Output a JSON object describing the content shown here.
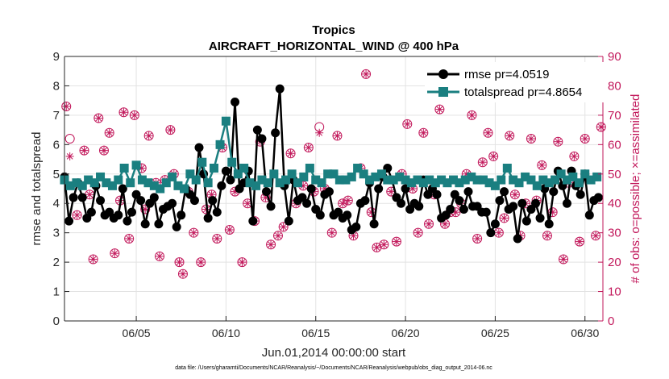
{
  "chart_data": {
    "type": "line",
    "title": "Tropics",
    "subtitle": "AIRCRAFT_HORIZONTAL_WIND @ 400 hPa",
    "xlabel": "Jun.01,2014 00:00:00 start",
    "ylabel": "rmse and totalspread",
    "ylabel_right": "# of obs: o=possible; ×=assimilated",
    "footnote": "data file: /Users/gharamti/Documents/NCAR/Reanalysis/~/Documents/NCAR/Reanalysis/webpub/obs_diag_output_2014-06.nc",
    "xlim": [
      1,
      31
    ],
    "ylim": [
      0,
      9
    ],
    "ylim_right": [
      0,
      90
    ],
    "x_ticks": [
      5,
      10,
      15,
      20,
      25,
      30
    ],
    "x_tick_labels": [
      "06/05",
      "06/10",
      "06/15",
      "06/20",
      "06/25",
      "06/30"
    ],
    "y_ticks": [
      0,
      1,
      2,
      3,
      4,
      5,
      6,
      7,
      8,
      9
    ],
    "y_ticks_right": [
      0,
      10,
      20,
      30,
      40,
      50,
      60,
      70,
      80,
      90
    ],
    "grid": "on",
    "legend_position": "top-right",
    "series": [
      {
        "name": "rmse pr=4.0519",
        "color": "#000000",
        "marker": "circle",
        "x": [
          1.0,
          1.25,
          1.5,
          1.75,
          2.0,
          2.25,
          2.5,
          2.75,
          3.0,
          3.25,
          3.5,
          3.75,
          4.0,
          4.25,
          4.5,
          4.75,
          5.0,
          5.25,
          5.5,
          5.75,
          6.0,
          6.25,
          6.5,
          6.75,
          7.0,
          7.25,
          7.5,
          7.75,
          8.0,
          8.25,
          8.5,
          8.75,
          9.0,
          9.25,
          9.5,
          9.75,
          10.0,
          10.25,
          10.5,
          10.75,
          11.0,
          11.25,
          11.5,
          11.75,
          12.0,
          12.25,
          12.5,
          12.75,
          13.0,
          13.25,
          13.5,
          13.75,
          14.0,
          14.25,
          14.5,
          14.75,
          15.0,
          15.25,
          15.5,
          15.75,
          16.0,
          16.25,
          16.5,
          16.75,
          17.0,
          17.25,
          17.5,
          17.75,
          18.0,
          18.25,
          18.5,
          18.75,
          19.0,
          19.25,
          19.5,
          19.75,
          20.0,
          20.25,
          20.5,
          20.75,
          21.0,
          21.25,
          21.5,
          21.75,
          22.0,
          22.25,
          22.5,
          22.75,
          23.0,
          23.25,
          23.5,
          23.75,
          24.0,
          24.25,
          24.5,
          24.75,
          25.0,
          25.25,
          25.5,
          25.75,
          26.0,
          26.25,
          26.5,
          26.75,
          27.0,
          27.25,
          27.5,
          27.75,
          28.0,
          28.25,
          28.5,
          28.75,
          29.0,
          29.25,
          29.5,
          29.75,
          30.0,
          30.25,
          30.5,
          30.75
        ],
        "values": [
          4.9,
          3.4,
          4.2,
          4.7,
          4.2,
          3.5,
          3.7,
          4.6,
          4.1,
          3.6,
          3.7,
          3.5,
          3.6,
          4.5,
          3.4,
          3.7,
          4.3,
          4.1,
          3.3,
          4.0,
          4.2,
          3.3,
          3.8,
          3.9,
          4.0,
          3.2,
          3.6,
          4.5,
          4.3,
          4.1,
          5.9,
          5.0,
          3.5,
          4.1,
          3.7,
          4.6,
          5.1,
          4.8,
          7.45,
          4.5,
          4.7,
          5.1,
          3.4,
          6.5,
          6.2,
          4.4,
          3.9,
          6.4,
          7.9,
          4.6,
          3.4,
          4.8,
          4.1,
          4.2,
          4.0,
          4.5,
          3.8,
          3.6,
          4.3,
          4.4,
          3.6,
          3.7,
          3.5,
          3.6,
          3.1,
          3.2,
          4.0,
          4.1,
          4.7,
          3.3,
          4.5,
          4.9,
          5.2,
          4.8,
          4.2,
          4.0,
          4.5,
          3.8,
          4.0,
          3.9,
          4.8,
          4.3,
          4.5,
          4.3,
          3.5,
          3.6,
          3.8,
          4.3,
          4.1,
          3.8,
          4.4,
          3.9,
          3.9,
          3.7,
          3.7,
          3.0,
          3.3,
          4.1,
          4.4,
          3.8,
          3.9,
          2.8,
          4.0,
          3.4,
          3.8,
          4.0,
          3.5,
          4.5,
          3.3,
          4.4,
          5.1,
          4.6,
          4.0,
          5.1,
          4.6,
          4.3,
          5.0,
          3.6,
          4.1,
          4.2
        ],
        "values_2": []
      },
      {
        "name": "totalspread pr=4.8654",
        "color": "#1a7f80",
        "marker": "square",
        "x": [
          1.0,
          1.33,
          1.67,
          2.0,
          2.33,
          2.67,
          3.0,
          3.33,
          3.67,
          4.0,
          4.33,
          4.67,
          5.0,
          5.33,
          5.67,
          6.0,
          6.33,
          6.67,
          7.0,
          7.33,
          7.67,
          8.0,
          8.33,
          8.67,
          9.0,
          9.33,
          9.67,
          10.0,
          10.33,
          10.67,
          11.0,
          11.33,
          11.67,
          12.0,
          12.33,
          12.67,
          13.0,
          13.33,
          13.67,
          14.0,
          14.33,
          14.67,
          15.0,
          15.33,
          15.67,
          16.0,
          16.33,
          16.67,
          17.0,
          17.33,
          17.67,
          18.0,
          18.33,
          18.67,
          19.0,
          19.33,
          19.67,
          20.0,
          20.33,
          20.67,
          21.0,
          21.33,
          21.67,
          22.0,
          22.33,
          22.67,
          23.0,
          23.33,
          23.67,
          24.0,
          24.33,
          24.67,
          25.0,
          25.33,
          25.67,
          26.0,
          26.33,
          26.67,
          27.0,
          27.33,
          27.67,
          28.0,
          28.33,
          28.67,
          29.0,
          29.33,
          29.67,
          30.0,
          30.33,
          30.67
        ],
        "values": [
          4.8,
          4.6,
          4.7,
          4.6,
          4.8,
          4.7,
          4.9,
          4.7,
          4.6,
          4.8,
          5.2,
          4.7,
          5.3,
          4.8,
          4.7,
          4.6,
          4.5,
          4.7,
          4.9,
          4.6,
          4.5,
          5.0,
          4.8,
          5.4,
          4.7,
          5.2,
          6.0,
          6.8,
          5.4,
          5.0,
          5.2,
          4.7,
          4.6,
          4.8,
          4.7,
          5.0,
          4.7,
          4.8,
          5.0,
          4.7,
          4.9,
          5.2,
          4.8,
          4.7,
          5.0,
          5.0,
          4.8,
          4.8,
          4.9,
          5.2,
          5.0,
          4.8,
          4.9,
          5.0,
          4.8,
          4.8,
          4.9,
          4.8,
          4.7,
          4.8,
          4.7,
          4.8,
          4.7,
          4.8,
          4.7,
          4.8,
          4.7,
          4.8,
          4.9,
          4.8,
          4.8,
          4.7,
          4.6,
          4.8,
          5.2,
          4.8,
          4.7,
          4.9,
          4.8,
          4.6,
          4.8,
          4.7,
          4.8,
          5.0,
          4.8,
          4.9,
          4.7,
          5.0,
          4.8,
          4.9
        ]
      },
      {
        "name": "obs possible",
        "color": "#c2185b",
        "marker": "circle-open",
        "axis": "right",
        "x": [
          1.1,
          1.3,
          1.7,
          2.1,
          2.4,
          2.6,
          2.9,
          3.2,
          3.5,
          3.8,
          4.1,
          4.3,
          4.6,
          4.9,
          5.3,
          5.5,
          5.7,
          6.1,
          6.3,
          6.6,
          6.9,
          7.1,
          7.4,
          7.6,
          7.9,
          8.2,
          8.6,
          8.9,
          9.2,
          9.5,
          9.8,
          10.2,
          10.5,
          10.9,
          11.2,
          11.6,
          11.9,
          12.2,
          12.5,
          12.9,
          13.2,
          13.6,
          13.9,
          14.3,
          14.6,
          14.9,
          15.2,
          15.5,
          15.9,
          16.2,
          16.5,
          16.8,
          17.1,
          17.5,
          17.8,
          18.1,
          18.4,
          18.8,
          19.2,
          19.5,
          19.8,
          20.1,
          20.4,
          20.7,
          21.0,
          21.3,
          21.6,
          21.9,
          22.2,
          22.5,
          22.8,
          23.1,
          23.4,
          23.7,
          24.0,
          24.3,
          24.6,
          24.9,
          25.2,
          25.5,
          25.8,
          26.1,
          26.4,
          26.7,
          27.0,
          27.3,
          27.6,
          27.9,
          28.2,
          28.5,
          28.8,
          29.1,
          29.4,
          29.7,
          30.0,
          30.3,
          30.6,
          30.9
        ],
        "values": [
          73,
          62,
          36,
          58,
          43,
          21,
          69,
          58,
          64,
          23,
          41,
          71,
          28,
          70,
          52,
          38,
          63,
          47,
          22,
          48,
          65,
          50,
          20,
          16,
          44,
          30,
          20,
          38,
          43,
          28,
          59,
          31,
          44,
          20,
          40,
          34,
          61,
          42,
          26,
          29,
          32,
          57,
          40,
          46,
          59,
          44,
          66,
          45,
          30,
          63,
          40,
          41,
          29,
          52,
          84,
          37,
          25,
          26,
          44,
          27,
          50,
          67,
          45,
          30,
          64,
          33,
          43,
          72,
          33,
          37,
          37,
          40,
          50,
          70,
          28,
          54,
          64,
          56,
          30,
          35,
          63,
          43,
          29,
          40,
          62,
          41,
          53,
          29,
          37,
          61,
          21,
          47,
          56,
          27,
          62,
          80,
          29,
          66
        ],
        "values_2": []
      },
      {
        "name": "obs assimilated",
        "color": "#c2185b",
        "marker": "x",
        "axis": "right",
        "x": [
          1.1,
          1.3,
          1.7,
          2.1,
          2.4,
          2.6,
          2.9,
          3.2,
          3.5,
          3.8,
          4.1,
          4.3,
          4.6,
          4.9,
          5.3,
          5.5,
          5.7,
          6.1,
          6.3,
          6.6,
          6.9,
          7.1,
          7.4,
          7.6,
          7.9,
          8.2,
          8.6,
          8.9,
          9.2,
          9.5,
          9.8,
          10.2,
          10.5,
          10.9,
          11.2,
          11.6,
          11.9,
          12.2,
          12.5,
          12.9,
          13.2,
          13.6,
          13.9,
          14.3,
          14.6,
          14.9,
          15.2,
          15.5,
          15.9,
          16.2,
          16.5,
          16.8,
          17.1,
          17.5,
          17.8,
          18.1,
          18.4,
          18.8,
          19.2,
          19.5,
          19.8,
          20.1,
          20.4,
          20.7,
          21.0,
          21.3,
          21.6,
          21.9,
          22.2,
          22.5,
          22.8,
          23.1,
          23.4,
          23.7,
          24.0,
          24.3,
          24.6,
          24.9,
          25.2,
          25.5,
          25.8,
          26.1,
          26.4,
          26.7,
          27.0,
          27.3,
          27.6,
          27.9,
          28.2,
          28.5,
          28.8,
          29.1,
          29.4,
          29.7,
          30.0,
          30.3,
          30.6,
          30.9
        ],
        "values": [
          73,
          56,
          36,
          58,
          43,
          21,
          69,
          58,
          64,
          23,
          41,
          71,
          28,
          70,
          52,
          38,
          63,
          47,
          22,
          48,
          65,
          50,
          20,
          16,
          44,
          30,
          20,
          38,
          43,
          28,
          59,
          31,
          44,
          20,
          40,
          34,
          61,
          42,
          26,
          29,
          32,
          57,
          40,
          46,
          59,
          44,
          64,
          45,
          30,
          63,
          40,
          41,
          29,
          52,
          84,
          37,
          25,
          26,
          44,
          27,
          50,
          67,
          45,
          30,
          64,
          33,
          43,
          72,
          33,
          37,
          37,
          40,
          50,
          70,
          28,
          54,
          64,
          56,
          30,
          35,
          63,
          43,
          29,
          40,
          62,
          41,
          53,
          29,
          37,
          61,
          21,
          47,
          56,
          27,
          62,
          80,
          29,
          66
        ]
      }
    ]
  }
}
